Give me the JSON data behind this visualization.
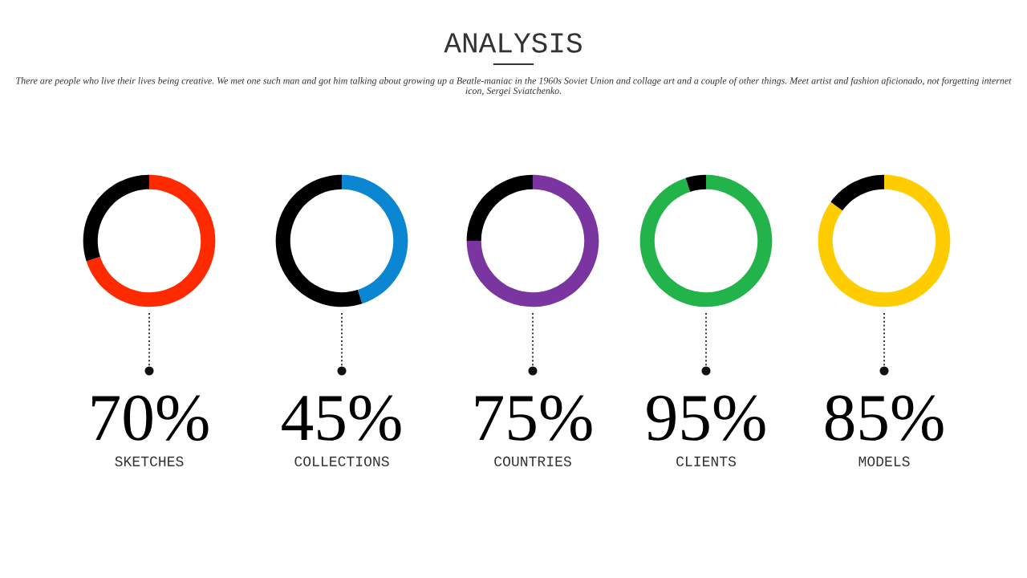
{
  "chart_data": [
    {
      "type": "other",
      "title": "ANALYSIS",
      "subtitle": "There are people who live their lives being creative. We met one such man and got him talking about growing up a Beatle-maniac in the 1960s Soviet Union and collage art and a couple of other things. Meet artist and fashion aficionado, not forgetting internet icon, Sergei Sviatchenko."
    },
    {
      "type": "donut",
      "xlabel": "SKETCHES",
      "categories": [
        null,
        null
      ],
      "values": [
        70,
        30
      ],
      "colors": [
        "#ff2a00",
        "#000000"
      ],
      "annotations": [
        "70%"
      ]
    },
    {
      "type": "donut",
      "xlabel": "COLLECTIONS",
      "categories": [
        null,
        null
      ],
      "values": [
        45,
        55
      ],
      "colors": [
        "#0a86d2",
        "#000000"
      ],
      "annotations": [
        "45%"
      ]
    },
    {
      "type": "donut",
      "xlabel": "COUNTRIES",
      "categories": [
        null,
        null
      ],
      "values": [
        75,
        25
      ],
      "colors": [
        "#7a35a0",
        "#000000"
      ],
      "annotations": [
        "75%"
      ]
    },
    {
      "type": "donut",
      "xlabel": "CLIENTS",
      "categories": [
        null,
        null
      ],
      "values": [
        95,
        5
      ],
      "colors": [
        "#22b34a",
        "#000000"
      ],
      "annotations": [
        "95%"
      ]
    },
    {
      "type": "donut",
      "xlabel": "MODELS",
      "categories": [
        null,
        null
      ],
      "values": [
        85,
        15
      ],
      "colors": [
        "#ffcc00",
        "#000000"
      ],
      "annotations": [
        "85%"
      ]
    }
  ]
}
